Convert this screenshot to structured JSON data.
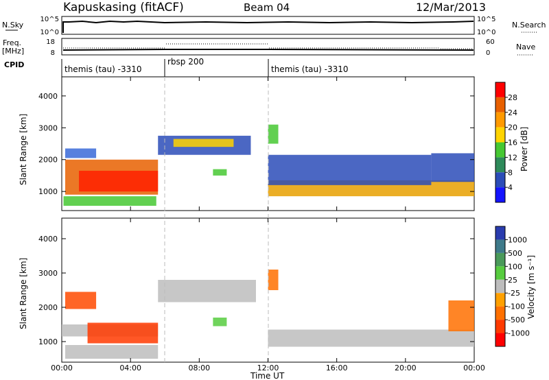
{
  "header": {
    "station": "Kapuskasing (fitACF)",
    "beam": "Beam 04",
    "date": "12/Mar/2013"
  },
  "top_panels": {
    "nsky_label": "N.Sky",
    "nsky_ticks": [
      "10^5",
      "10^0"
    ],
    "nsearch_label": "N.Search",
    "nsearch_ticks": [
      "10^5",
      "10^0"
    ],
    "freq_label_1": "Freq.",
    "freq_label_2": "[MHz]",
    "freq_ticks": [
      "18",
      "8"
    ],
    "nave_label": "Nave",
    "nave_ticks": [
      "60",
      "0"
    ],
    "cpid_label": "CPID",
    "cpid_segments": [
      {
        "label": "themis (tau) -3310",
        "start": 0,
        "end": 6
      },
      {
        "label": "rbsp 200",
        "start": 6,
        "end": 12
      },
      {
        "label": "themis (tau) -3310",
        "start": 12,
        "end": 24
      }
    ]
  },
  "x_axis": {
    "label": "Time UT",
    "ticks": [
      "00:00",
      "04:00",
      "08:00",
      "12:00",
      "16:00",
      "20:00",
      "00:00"
    ]
  },
  "power_colorbar": {
    "label": "Power [dB]",
    "ticks": [
      "28",
      "24",
      "20",
      "16",
      "12",
      "8",
      "4"
    ],
    "colors": [
      "#ff0000",
      "#e86000",
      "#ff9a00",
      "#ffd400",
      "#46c832",
      "#2e8a5a",
      "#2b4cb8",
      "#1414ff"
    ]
  },
  "velocity_colorbar": {
    "label": "Velocity [m s⁻¹]",
    "ticks": [
      "1000",
      "500",
      "100",
      "25",
      "-25",
      "-100",
      "-500",
      "-1000"
    ],
    "colors": [
      "#2a3cae",
      "#3e7a8a",
      "#4a9a5a",
      "#57cc3f",
      "#bdbdbd",
      "#ffa000",
      "#ff7000",
      "#ff3a00",
      "#ff0000"
    ]
  },
  "chart_data": [
    {
      "type": "heatmap",
      "title": "Power",
      "xlabel": "Time UT",
      "ylabel": "Slant Range [km]",
      "xlim": [
        0,
        24
      ],
      "ylim": [
        400,
        4600
      ],
      "yticks": [
        "1000",
        "2000",
        "3000",
        "4000"
      ],
      "echo_regions": [
        {
          "t_start": 0.2,
          "t_end": 2.0,
          "range_low": 2050,
          "range_high": 2350,
          "color": "#3a6ad8"
        },
        {
          "t_start": 0.2,
          "t_end": 5.6,
          "range_low": 900,
          "range_high": 2000,
          "color": "#e86000"
        },
        {
          "t_start": 1.0,
          "t_end": 5.6,
          "range_low": 1000,
          "range_high": 1650,
          "color": "#ff2000"
        },
        {
          "t_start": 0.1,
          "t_end": 5.5,
          "range_low": 550,
          "range_high": 850,
          "color": "#46c832"
        },
        {
          "t_start": 5.6,
          "t_end": 11.0,
          "range_low": 2150,
          "range_high": 2750,
          "color": "#2b4cb8"
        },
        {
          "t_start": 6.5,
          "t_end": 10.0,
          "range_low": 2400,
          "range_high": 2650,
          "color": "#ffd400"
        },
        {
          "t_start": 8.8,
          "t_end": 9.6,
          "range_low": 1500,
          "range_high": 1700,
          "color": "#46c832"
        },
        {
          "t_start": 12.0,
          "t_end": 12.6,
          "range_low": 2500,
          "range_high": 3100,
          "color": "#46c832"
        },
        {
          "t_start": 12.0,
          "t_end": 24.0,
          "range_low": 850,
          "range_high": 1350,
          "color": "#e8a000"
        },
        {
          "t_start": 12.0,
          "t_end": 21.5,
          "range_low": 1200,
          "range_high": 2150,
          "color": "#2b4cb8"
        },
        {
          "t_start": 21.5,
          "t_end": 24.0,
          "range_low": 1300,
          "range_high": 2200,
          "color": "#2b4cb8"
        }
      ]
    },
    {
      "type": "heatmap",
      "title": "Velocity",
      "xlabel": "Time UT",
      "ylabel": "Slant Range [km]",
      "xlim": [
        0,
        24
      ],
      "ylim": [
        400,
        4600
      ],
      "yticks": [
        "1000",
        "2000",
        "3000",
        "4000"
      ],
      "echo_regions": [
        {
          "t_start": 0.2,
          "t_end": 2.0,
          "range_low": 1950,
          "range_high": 2450,
          "color": "#ff4a00"
        },
        {
          "t_start": 0.0,
          "t_end": 5.6,
          "range_low": 1150,
          "range_high": 1500,
          "color": "#bdbdbd"
        },
        {
          "t_start": 1.5,
          "t_end": 5.6,
          "range_low": 950,
          "range_high": 1550,
          "color": "#ff3a00"
        },
        {
          "t_start": 0.2,
          "t_end": 5.6,
          "range_low": 500,
          "range_high": 900,
          "color": "#bdbdbd"
        },
        {
          "t_start": 5.6,
          "t_end": 11.3,
          "range_low": 2150,
          "range_high": 2800,
          "color": "#bdbdbd"
        },
        {
          "t_start": 8.8,
          "t_end": 9.6,
          "range_low": 1450,
          "range_high": 1700,
          "color": "#57cc3f"
        },
        {
          "t_start": 12.0,
          "t_end": 12.6,
          "range_low": 2500,
          "range_high": 3100,
          "color": "#ff7000"
        },
        {
          "t_start": 12.0,
          "t_end": 24.0,
          "range_low": 850,
          "range_high": 1350,
          "color": "#bdbdbd"
        },
        {
          "t_start": 22.5,
          "t_end": 24.0,
          "range_low": 1300,
          "range_high": 2200,
          "color": "#ff7000"
        }
      ]
    }
  ]
}
